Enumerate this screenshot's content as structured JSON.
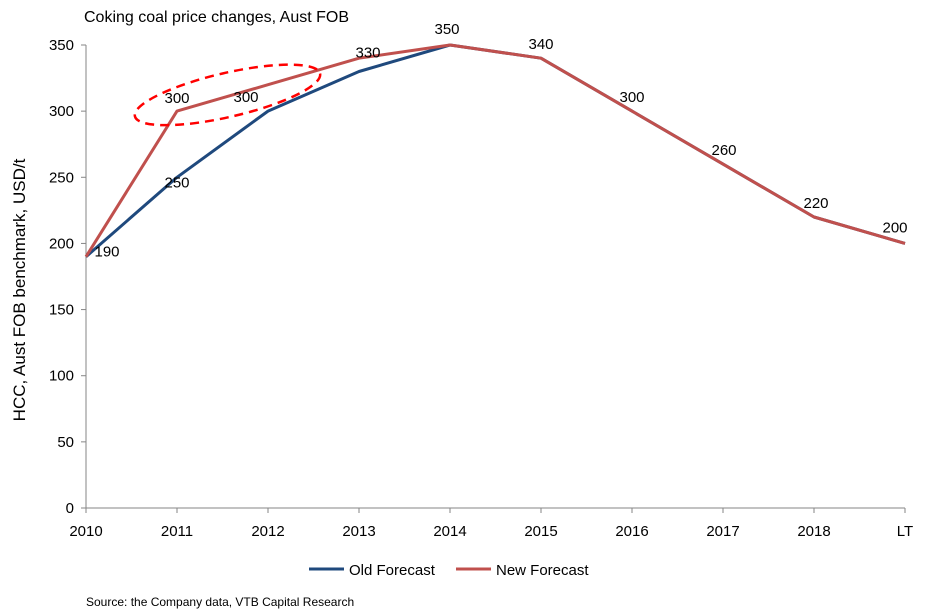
{
  "chart_data": {
    "type": "line",
    "title": "Coking coal price changes, Aust FOB",
    "ylabel": "HCC, Aust FOB benchmark, USD/t",
    "xlabel": "",
    "categories": [
      "2010",
      "2011",
      "2012",
      "2013",
      "2014",
      "2015",
      "2016",
      "2017",
      "2018",
      "LT"
    ],
    "ylim": [
      0,
      350
    ],
    "yticks": [
      0,
      50,
      100,
      150,
      200,
      250,
      300,
      350
    ],
    "grid": false,
    "legend_position": "bottom",
    "series": [
      {
        "name": "Old Forecast",
        "color": "#1f497d",
        "values": [
          190,
          250,
          300,
          330,
          350,
          340,
          300,
          260,
          220,
          200
        ]
      },
      {
        "name": "New Forecast",
        "color": "#c0504d",
        "values": [
          190,
          300,
          320,
          340,
          350,
          340,
          300,
          260,
          220,
          200
        ]
      }
    ],
    "data_labels": [
      {
        "category": "2010",
        "text": "190"
      },
      {
        "category": "2011",
        "text": "300"
      },
      {
        "category": "2011",
        "text": "250"
      },
      {
        "category": "2012",
        "text": "300"
      },
      {
        "category": "2013",
        "text": "330"
      },
      {
        "category": "2014",
        "text": "350"
      },
      {
        "category": "2015",
        "text": "340"
      },
      {
        "category": "2016",
        "text": "300"
      },
      {
        "category": "2017",
        "text": "260"
      },
      {
        "category": "2018",
        "text": "220"
      },
      {
        "category": "LT",
        "text": "200"
      }
    ],
    "annotation": {
      "shape": "dashed-ellipse",
      "color": "#ff0000",
      "around": [
        "2011",
        "2012"
      ]
    }
  },
  "source": "Source:  the Company  data, VTB Capital Research"
}
